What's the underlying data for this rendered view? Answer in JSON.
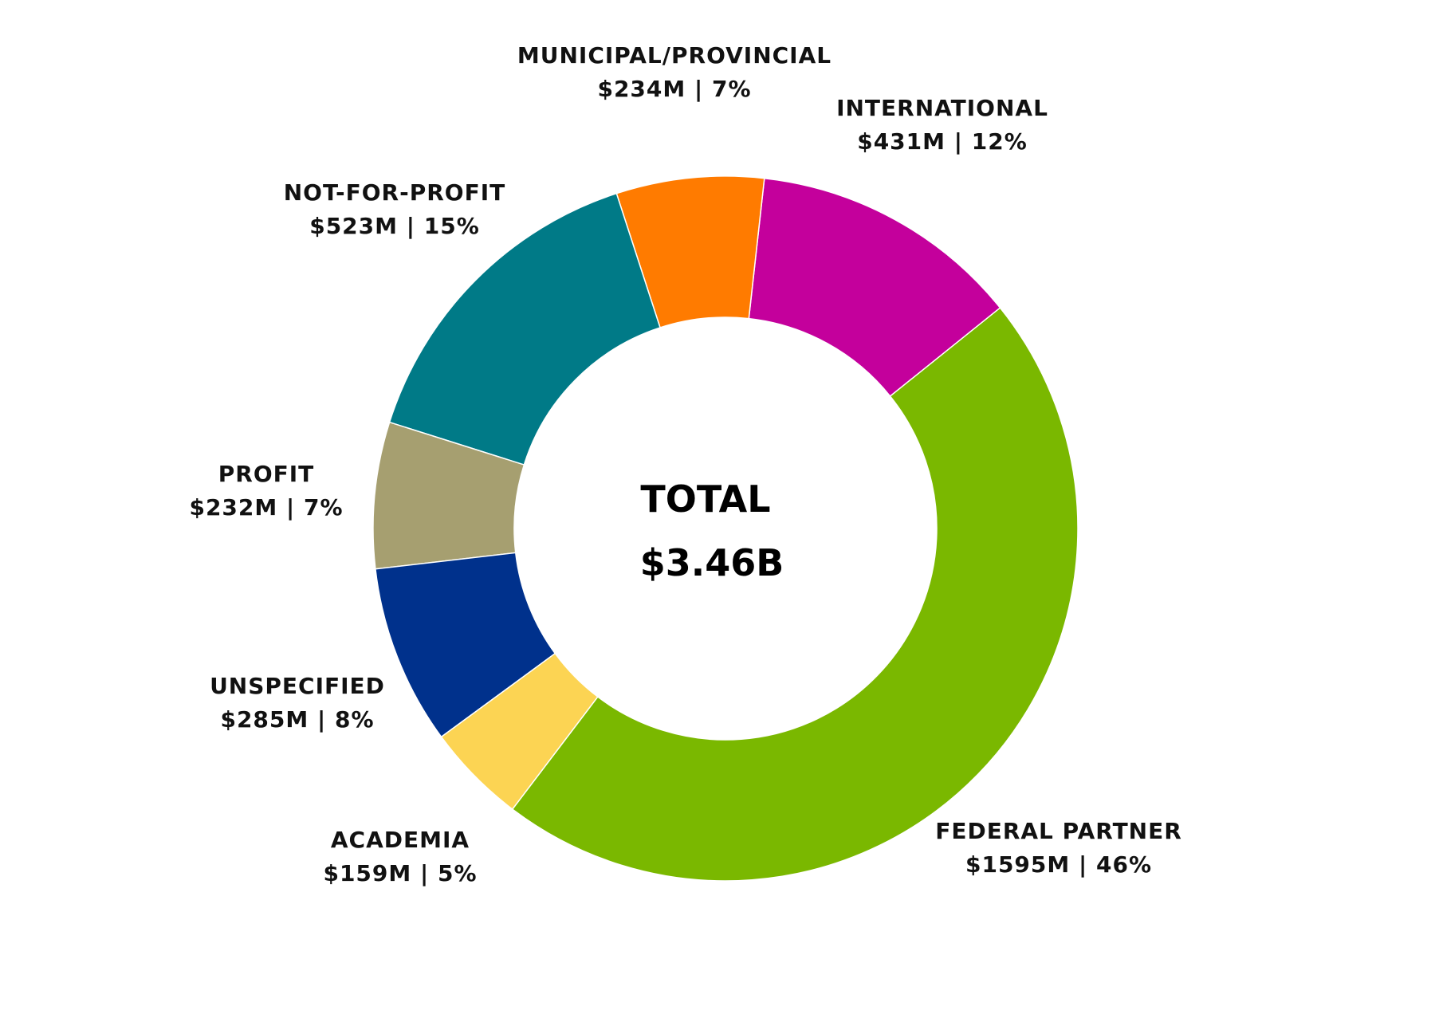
{
  "chart_data": {
    "type": "pie",
    "variant": "donut",
    "center_label": "TOTAL",
    "center_value": "$3.46B",
    "categories": [
      "FEDERAL PARTNER",
      "INTERNATIONAL",
      "MUNICIPAL/PROVINCIAL",
      "NOT-FOR-PROFIT",
      "PROFIT",
      "UNSPECIFIED",
      "ACADEMIA"
    ],
    "values": [
      1595,
      431,
      234,
      523,
      232,
      285,
      159
    ],
    "value_labels": [
      "$1595M | 46%",
      "$431M | 12%",
      "$234M | 7%",
      "$523M | 15%",
      "$232M | 7%",
      "$285M | 8%",
      "$159M | 5%"
    ],
    "colors": [
      "#7ab800",
      "#c4009c",
      "#ff7b00",
      "#007a87",
      "#a69f70",
      "#00318c",
      "#fcd453"
    ],
    "start": "academia-federal boundary, counter-clockwise",
    "legend": "none"
  }
}
